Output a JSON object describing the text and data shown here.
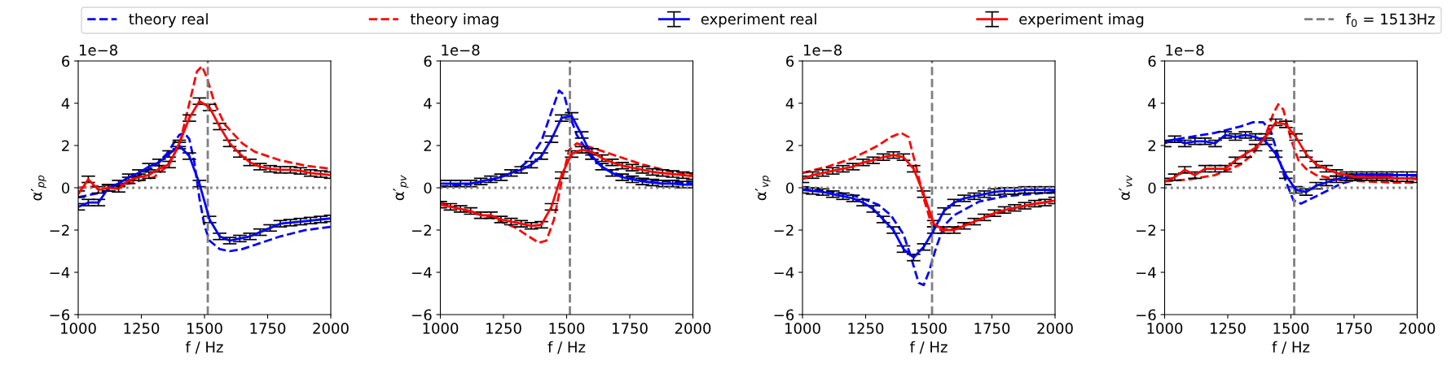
{
  "chart_data": [
    {
      "type": "line",
      "ylabel": "α′$_{pp}$",
      "xlabel": "f / Hz",
      "xlim": [
        1000,
        2000
      ],
      "xticks": [
        1000,
        1250,
        1500,
        1750,
        2000
      ],
      "ylim": [
        -6,
        6
      ],
      "yticks": [
        -6,
        -4,
        -2,
        0,
        2,
        4,
        6
      ],
      "grid": false,
      "legend": "top",
      "marker": "none",
      "annotations": [
        "1e−8"
      ],
      "ref_lines": [
        {
          "axis": "x",
          "value": 1513,
          "label": "f$_{0}$ = 1513Hz",
          "color": "#808080",
          "line_style": "dashed"
        },
        {
          "axis": "y",
          "value": 0,
          "color": "#808080",
          "line_style": "dotted"
        }
      ],
      "series": [
        {
          "name": "theory real",
          "color": "#0000ff",
          "line_style": "dashed",
          "x": [
            1000,
            1100,
            1200,
            1300,
            1350,
            1400,
            1420,
            1440,
            1460,
            1480,
            1500,
            1520,
            1560,
            1600,
            1650,
            1700,
            1800,
            1900,
            2000
          ],
          "values": [
            -0.45,
            -0.2,
            0.3,
            1.0,
            1.6,
            2.5,
            2.6,
            2.3,
            1.2,
            -0.5,
            -1.8,
            -2.5,
            -2.9,
            -3.0,
            -2.9,
            -2.7,
            -2.3,
            -2.0,
            -1.85
          ]
        },
        {
          "name": "theory imag",
          "color": "#ff0000",
          "line_style": "dashed",
          "x": [
            1000,
            1100,
            1200,
            1300,
            1350,
            1400,
            1440,
            1470,
            1490,
            1510,
            1540,
            1580,
            1650,
            1700,
            1800,
            1900,
            2000
          ],
          "values": [
            0.0,
            0.1,
            0.2,
            0.5,
            1.0,
            2.0,
            4.0,
            5.5,
            5.75,
            5.2,
            4.0,
            3.0,
            2.1,
            1.7,
            1.3,
            1.05,
            0.9
          ]
        },
        {
          "name": "experiment real",
          "color": "#0000ff",
          "line_style": "solid",
          "x": [
            1000,
            1040,
            1080,
            1120,
            1160,
            1200,
            1240,
            1280,
            1320,
            1360,
            1400,
            1440,
            1480,
            1520,
            1560,
            1600,
            1640,
            1680,
            1720,
            1760,
            1800,
            1840,
            1880,
            1920,
            1960,
            2000
          ],
          "values": [
            -0.9,
            -0.7,
            -0.7,
            0.0,
            0.2,
            0.5,
            0.7,
            1.0,
            1.2,
            1.6,
            2.0,
            1.5,
            0.2,
            -1.5,
            -2.3,
            -2.5,
            -2.4,
            -2.3,
            -2.1,
            -1.9,
            -1.7,
            -1.65,
            -1.6,
            -1.55,
            -1.5,
            -1.45
          ],
          "errors": [
            0.15,
            0.15,
            0.15,
            0.15,
            0.15,
            0.15,
            0.15,
            0.15,
            0.15,
            0.15,
            0.15,
            0.15,
            0.15,
            0.15,
            0.15,
            0.15,
            0.15,
            0.15,
            0.15,
            0.15,
            0.15,
            0.15,
            0.15,
            0.15,
            0.15,
            0.15
          ]
        },
        {
          "name": "experiment imag",
          "color": "#ff0000",
          "line_style": "solid",
          "x": [
            1000,
            1040,
            1080,
            1120,
            1160,
            1200,
            1240,
            1280,
            1320,
            1360,
            1400,
            1440,
            1480,
            1520,
            1560,
            1600,
            1640,
            1680,
            1720,
            1760,
            1800,
            1840,
            1880,
            1920,
            1960,
            2000
          ],
          "values": [
            -0.3,
            0.4,
            -0.1,
            0.0,
            -0.05,
            0.35,
            0.5,
            0.6,
            0.9,
            1.1,
            2.1,
            3.3,
            4.1,
            3.8,
            2.9,
            2.1,
            1.6,
            1.2,
            1.0,
            0.9,
            0.85,
            0.85,
            0.8,
            0.7,
            0.65,
            0.6
          ],
          "errors": [
            0.15,
            0.15,
            0.15,
            0.15,
            0.15,
            0.15,
            0.15,
            0.15,
            0.15,
            0.15,
            0.15,
            0.15,
            0.15,
            0.15,
            0.15,
            0.15,
            0.15,
            0.15,
            0.15,
            0.15,
            0.15,
            0.15,
            0.15,
            0.15,
            0.15,
            0.15
          ]
        }
      ]
    },
    {
      "type": "line",
      "ylabel": "α′$_{pv}$",
      "xlabel": "f / Hz",
      "xlim": [
        1000,
        2000
      ],
      "xticks": [
        1000,
        1250,
        1500,
        1750,
        2000
      ],
      "ylim": [
        -6,
        6
      ],
      "yticks": [
        -6,
        -4,
        -2,
        0,
        2,
        4,
        6
      ],
      "grid": false,
      "marker": "none",
      "annotations": [
        "1e−8"
      ],
      "ref_lines": [
        {
          "axis": "x",
          "value": 1513,
          "color": "#808080",
          "line_style": "dashed"
        },
        {
          "axis": "y",
          "value": 0,
          "color": "#808080",
          "line_style": "dotted"
        }
      ],
      "series": [
        {
          "name": "theory real",
          "color": "#0000ff",
          "line_style": "dashed",
          "x": [
            1000,
            1100,
            1200,
            1300,
            1350,
            1400,
            1440,
            1470,
            1490,
            1510,
            1540,
            1600,
            1650,
            1700,
            1800,
            1900,
            2000
          ],
          "values": [
            0.05,
            0.15,
            0.35,
            0.8,
            1.3,
            2.2,
            3.6,
            4.6,
            4.4,
            3.5,
            2.5,
            1.4,
            0.9,
            0.65,
            0.4,
            0.3,
            0.2
          ]
        },
        {
          "name": "theory imag",
          "color": "#ff0000",
          "line_style": "dashed",
          "x": [
            1000,
            1100,
            1200,
            1300,
            1350,
            1390,
            1420,
            1450,
            1480,
            1510,
            1540,
            1600,
            1700,
            1800,
            1900,
            2000
          ],
          "values": [
            -0.7,
            -1.1,
            -1.4,
            -1.9,
            -2.3,
            -2.6,
            -2.5,
            -1.5,
            0.3,
            1.8,
            2.1,
            1.9,
            1.5,
            1.1,
            0.8,
            0.6
          ]
        },
        {
          "name": "experiment real",
          "color": "#0000ff",
          "line_style": "solid",
          "x": [
            1000,
            1040,
            1080,
            1120,
            1160,
            1200,
            1240,
            1280,
            1320,
            1360,
            1400,
            1440,
            1480,
            1520,
            1560,
            1600,
            1640,
            1680,
            1720,
            1760,
            1800,
            1840,
            1880,
            1920,
            1960,
            2000
          ],
          "values": [
            0.2,
            0.2,
            0.2,
            0.2,
            0.3,
            0.4,
            0.5,
            0.7,
            0.85,
            1.1,
            1.5,
            2.3,
            3.3,
            3.4,
            2.5,
            1.5,
            1.0,
            0.7,
            0.5,
            0.4,
            0.3,
            0.25,
            0.2,
            0.2,
            0.15,
            0.15
          ],
          "errors": [
            0.15,
            0.15,
            0.15,
            0.15,
            0.15,
            0.15,
            0.15,
            0.15,
            0.15,
            0.15,
            0.15,
            0.15,
            0.15,
            0.15,
            0.15,
            0.15,
            0.15,
            0.15,
            0.15,
            0.15,
            0.15,
            0.15,
            0.15,
            0.15,
            0.15,
            0.15
          ]
        },
        {
          "name": "experiment imag",
          "color": "#ff0000",
          "line_style": "solid",
          "x": [
            1000,
            1040,
            1080,
            1120,
            1160,
            1200,
            1240,
            1280,
            1320,
            1360,
            1400,
            1440,
            1480,
            1520,
            1560,
            1600,
            1640,
            1680,
            1720,
            1760,
            1800,
            1840,
            1880,
            1920,
            1960,
            2000
          ],
          "values": [
            -0.8,
            -0.9,
            -1.0,
            -1.1,
            -1.3,
            -1.3,
            -1.5,
            -1.6,
            -1.7,
            -1.8,
            -1.75,
            -0.9,
            0.6,
            1.6,
            1.8,
            1.7,
            1.4,
            1.2,
            1.05,
            0.95,
            0.85,
            0.75,
            0.7,
            0.65,
            0.6,
            0.55
          ],
          "errors": [
            0.15,
            0.15,
            0.15,
            0.15,
            0.15,
            0.15,
            0.15,
            0.15,
            0.15,
            0.15,
            0.15,
            0.15,
            0.15,
            0.15,
            0.15,
            0.15,
            0.15,
            0.15,
            0.15,
            0.15,
            0.15,
            0.15,
            0.15,
            0.15,
            0.15,
            0.15
          ]
        }
      ]
    },
    {
      "type": "line",
      "ylabel": "α′$_{vp}$",
      "xlabel": "f / Hz",
      "xlim": [
        1000,
        2000
      ],
      "xticks": [
        1000,
        1250,
        1500,
        1750,
        2000
      ],
      "ylim": [
        -6,
        6
      ],
      "yticks": [
        -6,
        -4,
        -2,
        0,
        2,
        4,
        6
      ],
      "grid": false,
      "marker": "none",
      "annotations": [
        "1e−8"
      ],
      "ref_lines": [
        {
          "axis": "x",
          "value": 1513,
          "color": "#808080",
          "line_style": "dashed"
        },
        {
          "axis": "y",
          "value": 0,
          "color": "#808080",
          "line_style": "dotted"
        }
      ],
      "series": [
        {
          "name": "theory real",
          "color": "#0000ff",
          "line_style": "dashed",
          "x": [
            1000,
            1100,
            1200,
            1300,
            1350,
            1400,
            1430,
            1460,
            1480,
            1500,
            1530,
            1560,
            1600,
            1700,
            1800,
            1900,
            2000
          ],
          "values": [
            -0.05,
            -0.15,
            -0.35,
            -0.8,
            -1.3,
            -2.2,
            -3.3,
            -4.5,
            -4.6,
            -4.0,
            -2.8,
            -1.8,
            -1.3,
            -0.65,
            -0.4,
            -0.3,
            -0.2
          ]
        },
        {
          "name": "theory imag",
          "color": "#ff0000",
          "line_style": "dashed",
          "x": [
            1000,
            1100,
            1200,
            1300,
            1350,
            1390,
            1420,
            1450,
            1480,
            1510,
            1540,
            1600,
            1700,
            1800,
            1900,
            2000
          ],
          "values": [
            0.7,
            1.0,
            1.4,
            2.0,
            2.4,
            2.6,
            2.4,
            1.0,
            -0.5,
            -1.7,
            -2.0,
            -1.9,
            -1.5,
            -1.1,
            -0.8,
            -0.6
          ]
        },
        {
          "name": "experiment real",
          "color": "#0000ff",
          "line_style": "solid",
          "x": [
            1000,
            1040,
            1080,
            1120,
            1160,
            1200,
            1240,
            1280,
            1320,
            1360,
            1400,
            1440,
            1480,
            1520,
            1560,
            1600,
            1640,
            1680,
            1720,
            1760,
            1800,
            1840,
            1880,
            1920,
            1960,
            2000
          ],
          "values": [
            -0.1,
            -0.15,
            -0.2,
            -0.3,
            -0.4,
            -0.5,
            -0.7,
            -1.0,
            -1.5,
            -2.0,
            -2.9,
            -3.3,
            -2.8,
            -2.0,
            -1.1,
            -0.7,
            -0.5,
            -0.4,
            -0.3,
            -0.2,
            -0.15,
            -0.15,
            -0.1,
            -0.1,
            -0.1,
            -0.1
          ],
          "errors": [
            0.15,
            0.15,
            0.15,
            0.15,
            0.15,
            0.15,
            0.15,
            0.15,
            0.15,
            0.15,
            0.15,
            0.15,
            0.15,
            0.15,
            0.15,
            0.15,
            0.15,
            0.15,
            0.15,
            0.15,
            0.15,
            0.15,
            0.15,
            0.15,
            0.15,
            0.15
          ]
        },
        {
          "name": "experiment imag",
          "color": "#ff0000",
          "line_style": "solid",
          "x": [
            1000,
            1040,
            1080,
            1120,
            1160,
            1200,
            1240,
            1280,
            1320,
            1360,
            1400,
            1440,
            1480,
            1520,
            1560,
            1600,
            1640,
            1680,
            1720,
            1760,
            1800,
            1840,
            1880,
            1920,
            1960,
            2000
          ],
          "values": [
            0.4,
            0.6,
            0.7,
            0.8,
            0.9,
            1.0,
            1.2,
            1.3,
            1.45,
            1.55,
            1.45,
            0.9,
            -0.3,
            -1.7,
            -2.0,
            -2.0,
            -1.8,
            -1.6,
            -1.4,
            -1.2,
            -1.05,
            -0.95,
            -0.85,
            -0.75,
            -0.7,
            -0.6
          ],
          "errors": [
            0.15,
            0.15,
            0.15,
            0.15,
            0.15,
            0.15,
            0.15,
            0.15,
            0.15,
            0.15,
            0.15,
            0.15,
            0.15,
            0.15,
            0.15,
            0.15,
            0.15,
            0.15,
            0.15,
            0.15,
            0.15,
            0.15,
            0.15,
            0.15,
            0.15,
            0.15
          ]
        }
      ]
    },
    {
      "type": "line",
      "ylabel": "α′$_{vv}$",
      "xlabel": "f / Hz",
      "xlim": [
        1000,
        2000
      ],
      "xticks": [
        1000,
        1250,
        1500,
        1750,
        2000
      ],
      "ylim": [
        -6,
        6
      ],
      "yticks": [
        -6,
        -4,
        -2,
        0,
        2,
        4,
        6
      ],
      "grid": false,
      "marker": "none",
      "annotations": [
        "1e−8"
      ],
      "ref_lines": [
        {
          "axis": "x",
          "value": 1513,
          "color": "#808080",
          "line_style": "dashed"
        },
        {
          "axis": "y",
          "value": 0,
          "color": "#808080",
          "line_style": "dotted"
        }
      ],
      "series": [
        {
          "name": "theory real",
          "color": "#0000ff",
          "line_style": "dashed",
          "x": [
            1000,
            1100,
            1200,
            1300,
            1350,
            1390,
            1420,
            1450,
            1480,
            1510,
            1540,
            1600,
            1700,
            1800,
            1900,
            2000
          ],
          "values": [
            2.2,
            2.4,
            2.6,
            2.9,
            3.1,
            3.1,
            2.7,
            1.5,
            0.3,
            -0.6,
            -0.75,
            -0.4,
            0.2,
            0.5,
            0.6,
            0.6
          ]
        },
        {
          "name": "theory imag",
          "color": "#ff0000",
          "line_style": "dashed",
          "x": [
            1000,
            1100,
            1200,
            1300,
            1350,
            1400,
            1430,
            1450,
            1470,
            1500,
            1530,
            1560,
            1600,
            1700,
            1800,
            1900,
            2000
          ],
          "values": [
            0.3,
            0.4,
            0.6,
            1.1,
            1.6,
            2.5,
            3.5,
            3.95,
            3.7,
            2.3,
            1.3,
            0.9,
            0.6,
            0.35,
            0.3,
            0.25,
            0.25
          ]
        },
        {
          "name": "experiment real",
          "color": "#0000ff",
          "line_style": "solid",
          "x": [
            1000,
            1040,
            1080,
            1120,
            1160,
            1200,
            1240,
            1280,
            1320,
            1360,
            1400,
            1440,
            1480,
            1520,
            1560,
            1600,
            1640,
            1680,
            1720,
            1760,
            1800,
            1840,
            1880,
            1920,
            1960,
            2000
          ],
          "values": [
            2.1,
            2.3,
            2.1,
            2.2,
            2.2,
            2.1,
            2.5,
            2.4,
            2.5,
            2.4,
            2.2,
            1.6,
            0.6,
            -0.1,
            -0.2,
            0.1,
            0.25,
            0.4,
            0.5,
            0.6,
            0.6,
            0.6,
            0.6,
            0.6,
            0.6,
            0.6
          ],
          "errors": [
            0.15,
            0.15,
            0.15,
            0.15,
            0.15,
            0.15,
            0.15,
            0.15,
            0.15,
            0.15,
            0.15,
            0.15,
            0.15,
            0.15,
            0.15,
            0.15,
            0.15,
            0.15,
            0.15,
            0.15,
            0.15,
            0.15,
            0.15,
            0.15,
            0.15,
            0.15
          ]
        },
        {
          "name": "experiment imag",
          "color": "#ff0000",
          "line_style": "solid",
          "x": [
            1000,
            1040,
            1080,
            1120,
            1160,
            1200,
            1240,
            1280,
            1320,
            1360,
            1400,
            1440,
            1480,
            1520,
            1560,
            1600,
            1640,
            1680,
            1720,
            1760,
            1800,
            1840,
            1880,
            1920,
            1960,
            2000
          ],
          "values": [
            0.3,
            0.5,
            0.85,
            0.6,
            0.9,
            0.9,
            0.9,
            1.3,
            1.6,
            1.9,
            2.4,
            3.1,
            3.0,
            2.4,
            1.6,
            1.1,
            0.9,
            0.7,
            0.6,
            0.5,
            0.5,
            0.5,
            0.5,
            0.45,
            0.45,
            0.4
          ],
          "errors": [
            0.15,
            0.15,
            0.15,
            0.15,
            0.15,
            0.15,
            0.15,
            0.15,
            0.15,
            0.15,
            0.15,
            0.15,
            0.15,
            0.15,
            0.15,
            0.15,
            0.15,
            0.15,
            0.15,
            0.15,
            0.15,
            0.15,
            0.15,
            0.15,
            0.15,
            0.15
          ]
        }
      ]
    }
  ]
}
